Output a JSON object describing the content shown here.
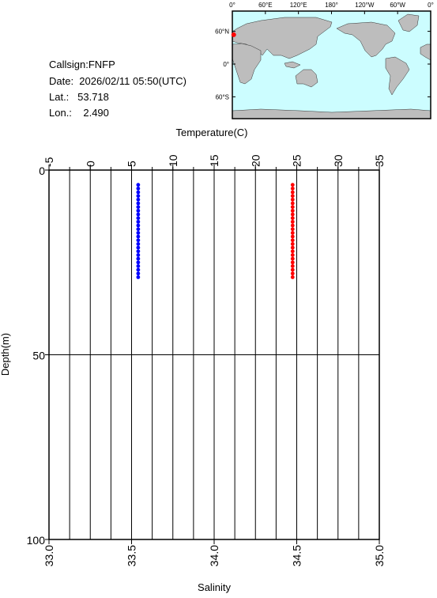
{
  "chart_data": {
    "type": "scatter",
    "info": [
      "Callsign:FNFP",
      "Date:  2026/02/11 05:50(UTC)",
      "Lat.:   53.718",
      "Lon.:    2.490"
    ],
    "ylabel": "Depth(m)",
    "ylim": [
      0,
      100
    ],
    "y_inverted": true,
    "yticks": [
      0,
      50,
      100
    ],
    "x_top": {
      "label": "Temperature(C)",
      "lim": [
        -5,
        35
      ],
      "ticks": [
        -5,
        0,
        5,
        10,
        15,
        20,
        25,
        30,
        35
      ],
      "grid": [
        -2.5,
        0,
        2.5,
        5,
        7.5,
        10,
        12.5,
        15,
        17.5,
        20,
        22.5,
        25,
        27.5,
        30,
        32.5
      ]
    },
    "x_bottom": {
      "label": "Salinity",
      "lim": [
        33,
        35
      ],
      "ticks": [
        {
          "value": 33,
          "label": "33.0"
        },
        33.5,
        {
          "value": 34,
          "label": "34.0"
        },
        34.5,
        {
          "value": 35,
          "label": "35.0"
        }
      ]
    },
    "series": [
      {
        "axis": "x_top",
        "color": "#ff0000",
        "x": [
          24.5,
          24.5,
          24.5,
          24.5,
          24.5,
          24.5,
          24.5,
          24.5,
          24.5,
          24.5,
          24.5,
          24.5,
          24.5,
          24.5,
          24.5,
          24.5,
          24.5,
          24.5,
          24.5,
          24.5,
          24.5,
          24.5,
          24.5,
          24.5,
          24.5,
          24.5
        ],
        "y": [
          4,
          5,
          6,
          7,
          8,
          9,
          10,
          11,
          12,
          13,
          14,
          15,
          16,
          17,
          18,
          19,
          20,
          21,
          22,
          23,
          24,
          25,
          26,
          27,
          28,
          29
        ]
      },
      {
        "axis": "x_bottom",
        "color": "#0000ff",
        "x": [
          33.54,
          33.54,
          33.54,
          33.54,
          33.54,
          33.54,
          33.54,
          33.54,
          33.54,
          33.54,
          33.54,
          33.54,
          33.54,
          33.54,
          33.54,
          33.54,
          33.54,
          33.54,
          33.54,
          33.54,
          33.54,
          33.54,
          33.54,
          33.54,
          33.54,
          33.54
        ],
        "y": [
          4,
          5,
          6,
          7,
          8,
          9,
          10,
          11,
          12,
          13,
          14,
          15,
          16,
          17,
          18,
          19,
          20,
          21,
          22,
          23,
          24,
          25,
          26,
          27,
          28,
          29
        ]
      }
    ],
    "map": {
      "lon_lim": [
        0,
        360
      ],
      "lon_ticks": [
        {
          "value": 0,
          "label": "0°"
        },
        {
          "value": 60,
          "label": "60°E"
        },
        {
          "value": 120,
          "label": "120°E"
        },
        {
          "value": 180,
          "label": "180°"
        },
        {
          "value": 240,
          "label": "120°W"
        },
        {
          "value": 300,
          "label": "60°W"
        },
        {
          "value": 360,
          "label": "0°"
        }
      ],
      "lat_ticks": [
        {
          "value": 60,
          "label": "60°N"
        },
        {
          "value": 0,
          "label": "0°"
        },
        {
          "value": -60,
          "label": "60°S"
        }
      ],
      "marker": {
        "lon": 2.49,
        "lat": 53.718,
        "color": "#ff0000"
      }
    }
  }
}
